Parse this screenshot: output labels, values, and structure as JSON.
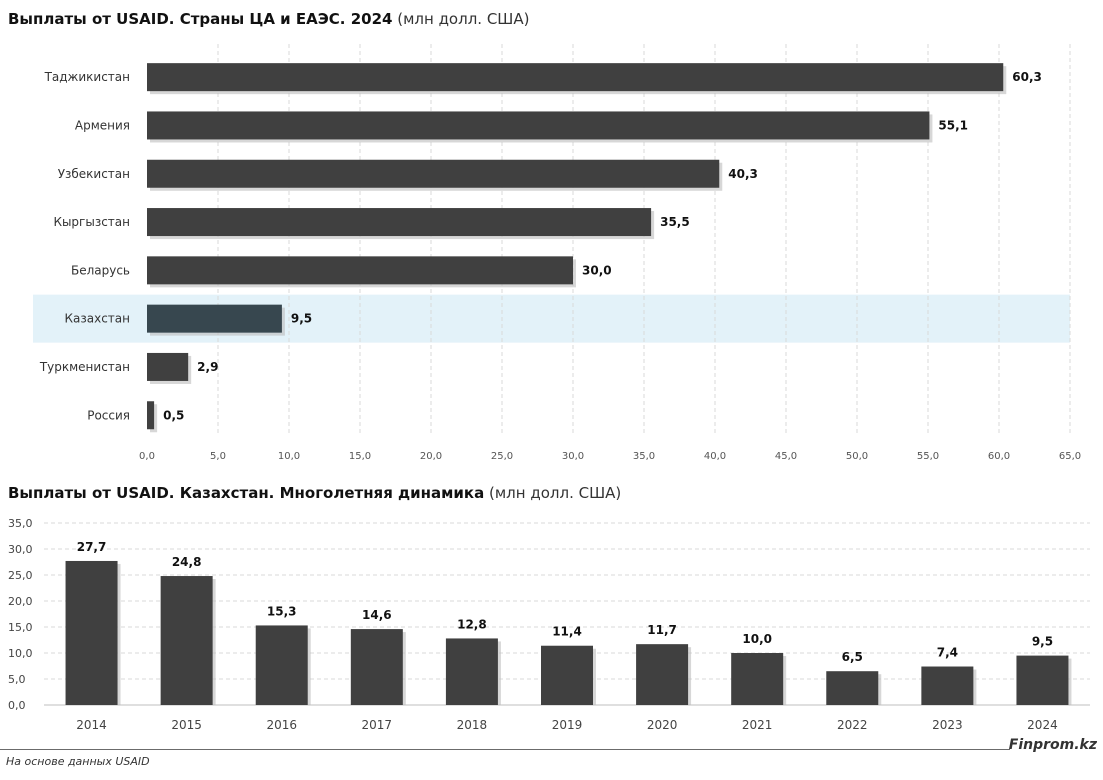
{
  "titles": {
    "chart1_bold": "Выплаты от USAID. Страны ЦА и ЕАЭС. 2024",
    "chart1_unit": "(млн долл. США)",
    "chart2_bold": "Выплаты от USAID. Казахстан. Многолетняя динамика",
    "chart2_unit": "(млн долл. США)"
  },
  "footer": {
    "source": "На основе данных USAID",
    "brand": "Finprom.kz"
  },
  "colors": {
    "bar": "#404040",
    "highlight_bar": "#37474f",
    "highlight_band": "#e3f2f9",
    "grid": "#d9d9d9"
  },
  "chart_data": [
    {
      "type": "bar",
      "orientation": "horizontal",
      "categories": [
        "Таджикистан",
        "Армения",
        "Узбекистан",
        "Кыргызстан",
        "Беларусь",
        "Казахстан",
        "Туркменистан",
        "Россия"
      ],
      "values": [
        60.3,
        55.1,
        40.3,
        35.5,
        30.0,
        9.5,
        2.9,
        0.5
      ],
      "value_labels": [
        "60,3",
        "55,1",
        "40,3",
        "35,5",
        "30,0",
        "9,5",
        "2,9",
        "0,5"
      ],
      "highlight": "Казахстан",
      "xlim": [
        0,
        65
      ],
      "x_ticks": [
        "0,0",
        "5,0",
        "10,0",
        "15,0",
        "20,0",
        "25,0",
        "30,0",
        "35,0",
        "40,0",
        "45,0",
        "50,0",
        "55,0",
        "60,0",
        "65,0"
      ],
      "grid": "vertical dashed"
    },
    {
      "type": "bar",
      "categories": [
        "2014",
        "2015",
        "2016",
        "2017",
        "2018",
        "2019",
        "2020",
        "2021",
        "2022",
        "2023",
        "2024"
      ],
      "values": [
        27.7,
        24.8,
        15.3,
        14.6,
        12.8,
        11.4,
        11.7,
        10.0,
        6.5,
        7.4,
        9.5
      ],
      "value_labels": [
        "27,7",
        "24,8",
        "15,3",
        "14,6",
        "12,8",
        "11,4",
        "11,7",
        "10,0",
        "6,5",
        "7,4",
        "9,5"
      ],
      "ylim": [
        0,
        35
      ],
      "y_ticks": [
        "0,0",
        "5,0",
        "10,0",
        "15,0",
        "20,0",
        "25,0",
        "30,0",
        "35,0"
      ],
      "grid": "horizontal dashed"
    }
  ]
}
